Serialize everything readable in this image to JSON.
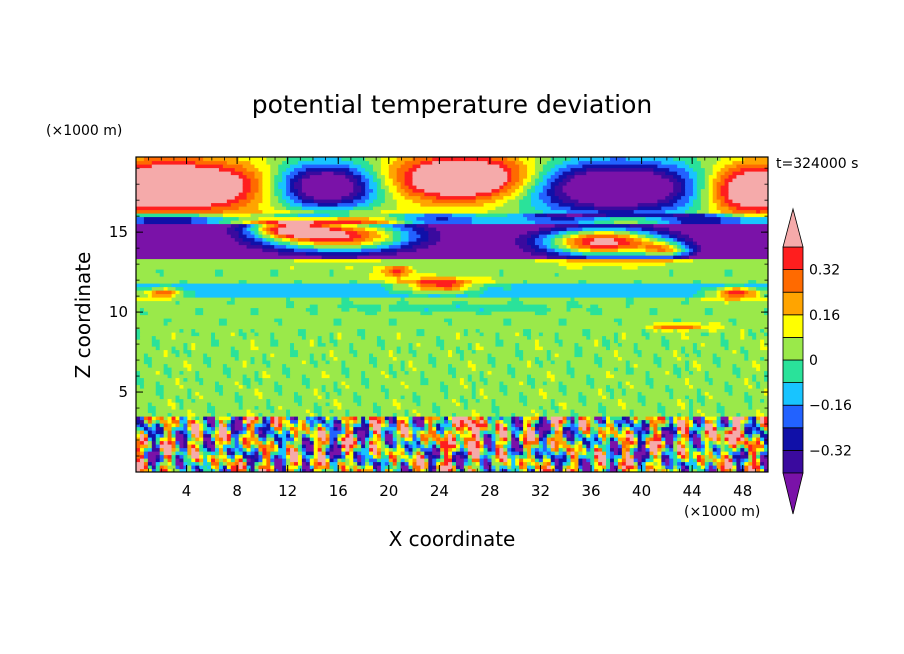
{
  "chart_data": {
    "type": "heatmap",
    "title": "potential temperature deviation",
    "time_label": "t=324000 s",
    "xlabel": "X coordinate",
    "ylabel": "Z coordinate",
    "x_unit": "(×1000 m)",
    "y_unit": "(×1000 m)",
    "xlim": [
      0,
      50
    ],
    "ylim": [
      0,
      19.7
    ],
    "x_ticks": [
      4,
      8,
      12,
      16,
      20,
      24,
      28,
      32,
      36,
      40,
      44,
      48
    ],
    "y_ticks": [
      5,
      10,
      15
    ],
    "colorbar": {
      "tick_values": [
        0.32,
        0.16,
        0,
        -0.16,
        -0.32
      ],
      "tick_labels": [
        "0.32",
        "0.16",
        "0",
        "−0.16",
        "−0.32"
      ],
      "levels": [
        {
          "upper": null,
          "color": "#7a0fa8"
        },
        {
          "upper": -0.4,
          "color": "#1a1ab4"
        },
        {
          "upper": -0.32,
          "color": "#1a1ab4"
        },
        {
          "upper": -0.24,
          "color": "#2166ff"
        },
        {
          "upper": -0.16,
          "color": "#19c8ff"
        },
        {
          "upper": -0.08,
          "color": "#29e3a0"
        },
        {
          "upper": 0,
          "color": "#9bef4a"
        },
        {
          "upper": 0.08,
          "color": "#7ee34a"
        },
        {
          "upper": 0.16,
          "color": "#ffff00"
        },
        {
          "upper": 0.24,
          "color": "#ffaa00"
        },
        {
          "upper": 0.32,
          "color": "#ff7000"
        },
        {
          "upper": 0.4,
          "color": "#ff2020"
        },
        {
          "upper": null,
          "color": "#f5aaaa"
        }
      ],
      "band_colors_bottom_to_top": [
        "#3a0a9e",
        "#1010a8",
        "#2262ff",
        "#18c4ff",
        "#2ae29a",
        "#9ae94a",
        "#ffff00",
        "#ffa400",
        "#ff6a00",
        "#ff1e1e"
      ],
      "under_color": "#7a12a8",
      "over_color": "#f5aaaa"
    },
    "features": [
      {
        "name": "upper-warm-bulge-1",
        "x": [
          0,
          10
        ],
        "z": [
          16.5,
          19.3
        ],
        "value": 0.45
      },
      {
        "name": "upper-cold-dome-1",
        "x": [
          10,
          20
        ],
        "z": [
          16.5,
          19.3
        ],
        "value": -0.4
      },
      {
        "name": "upper-warm-bulge-2",
        "x": [
          20,
          31
        ],
        "z": [
          16.8,
          19.5
        ],
        "value": 0.45
      },
      {
        "name": "upper-cold-dome-2",
        "x": [
          31,
          44
        ],
        "z": [
          15.8,
          19.3
        ],
        "value": -0.45
      },
      {
        "name": "upper-warm-bulge-3",
        "x": [
          44,
          50
        ],
        "z": [
          16.3,
          19.3
        ],
        "value": 0.45
      },
      {
        "name": "tropopause-cold-band",
        "x": [
          0,
          50
        ],
        "z": [
          13.3,
          15.5
        ],
        "value": -0.45
      },
      {
        "name": "tropopause-warm-intrusion-1",
        "x": [
          10,
          24
        ],
        "z": [
          13.5,
          16.5
        ],
        "value": 0.45
      },
      {
        "name": "tropopause-warm-intrusion-2",
        "x": [
          30,
          42
        ],
        "z": [
          13.5,
          15.9
        ],
        "value": 0.45
      },
      {
        "name": "mid-level-warm-filament",
        "x": [
          19,
          27
        ],
        "z": [
          11.2,
          13.0
        ],
        "value": 0.4
      },
      {
        "name": "boundary-layer-turbulence",
        "x": [
          0,
          50
        ],
        "z": [
          0,
          3.5
        ],
        "value": 0
      }
    ]
  }
}
